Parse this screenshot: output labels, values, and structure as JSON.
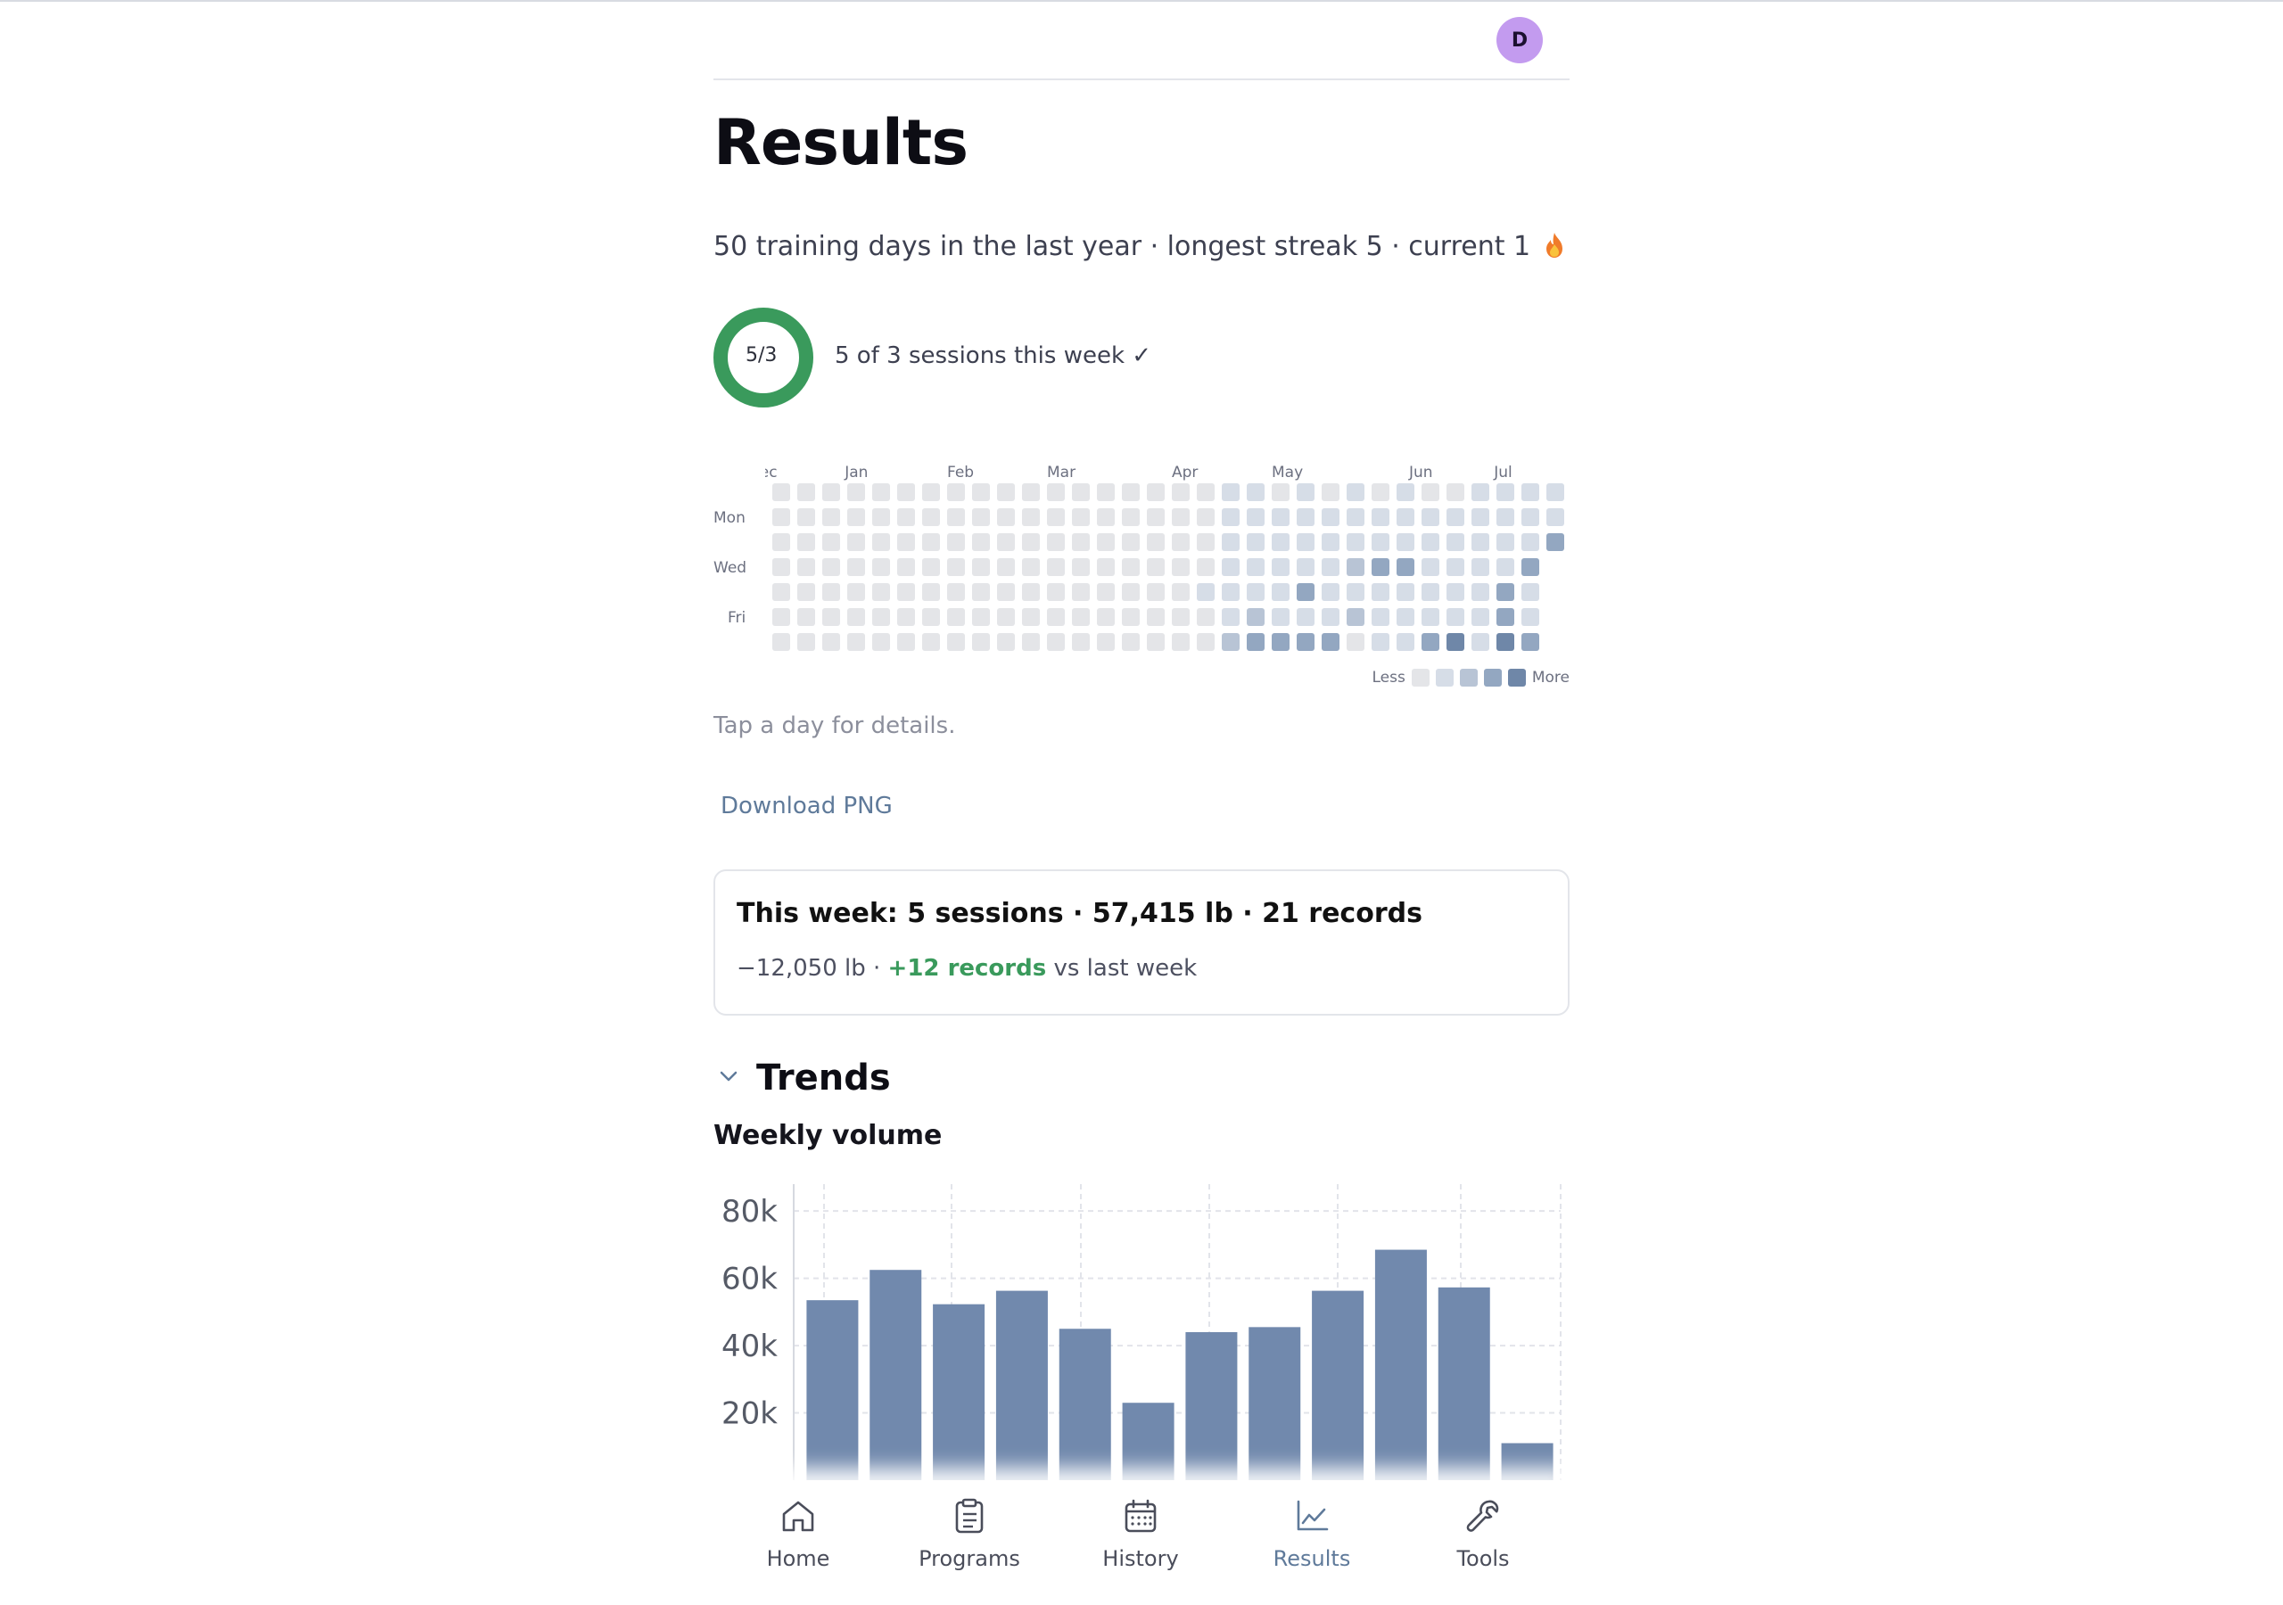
{
  "header": {
    "avatar_initial": "D"
  },
  "page": {
    "title": "Results",
    "summary": "50 training days in the last year · longest streak 5 · current 1"
  },
  "weekly_goal": {
    "ring_label": "5/3",
    "caption": "5 of 3 sessions this week ✓",
    "completed": 5,
    "target": 3,
    "color": "#3a9a5c"
  },
  "heatmap": {
    "months": [
      "Dec",
      "Jan",
      "Feb",
      "Mar",
      "Apr",
      "May",
      "Jun",
      "Jul"
    ],
    "day_labels": [
      "Mon",
      "Wed",
      "Fri"
    ],
    "legend_less": "Less",
    "legend_more": "More",
    "levels": [
      "#e4e5e8",
      "#d6dde7",
      "#b8c4d5",
      "#93a7c1",
      "#6f87a8"
    ],
    "active_weeks": [
      [
        0,
        0,
        0,
        0,
        1,
        0,
        0
      ],
      [
        1,
        1,
        1,
        1,
        1,
        1,
        2
      ],
      [
        1,
        1,
        1,
        1,
        1,
        2,
        3
      ],
      [
        0,
        1,
        1,
        1,
        1,
        1,
        3
      ],
      [
        1,
        1,
        1,
        1,
        3,
        1,
        3
      ],
      [
        0,
        1,
        1,
        1,
        1,
        1,
        3
      ],
      [
        1,
        1,
        1,
        2,
        1,
        2,
        0
      ],
      [
        0,
        1,
        1,
        3,
        1,
        1,
        1
      ],
      [
        1,
        1,
        1,
        3,
        1,
        1,
        1
      ],
      [
        0,
        1,
        1,
        1,
        1,
        1,
        3
      ],
      [
        0,
        1,
        1,
        1,
        1,
        1,
        4
      ],
      [
        1,
        1,
        1,
        1,
        1,
        1,
        1
      ],
      [
        1,
        1,
        1,
        1,
        3,
        3,
        4
      ],
      [
        1,
        1,
        1,
        3,
        1,
        1,
        3
      ],
      [
        1,
        1,
        3,
        0,
        0,
        0,
        0
      ]
    ]
  },
  "hint": "Tap a day for details.",
  "download_label": "Download PNG",
  "week_card": {
    "headline": "This week: 5 sessions · 57,415 lb · 21 records",
    "delta_volume": "−12,050 lb ·",
    "delta_records": "+12 records",
    "delta_suffix": "vs last week"
  },
  "trends": {
    "title": "Trends",
    "chart_title": "Weekly volume"
  },
  "chart_data": {
    "type": "bar",
    "title": "Weekly volume",
    "xlabel": "",
    "ylabel": "",
    "ylim": [
      0,
      88000
    ],
    "yticks": [
      20000,
      40000,
      60000,
      80000
    ],
    "ytick_labels": [
      "20k",
      "40k",
      "60k",
      "80k"
    ],
    "values": [
      53500,
      62500,
      52300,
      56300,
      45000,
      23000,
      44000,
      45500,
      56300,
      68500,
      57300,
      11000
    ],
    "bar_color": "#7189ad",
    "grid": true
  },
  "nav": {
    "items": [
      {
        "label": "Home",
        "icon": "home-icon"
      },
      {
        "label": "Programs",
        "icon": "clipboard-icon"
      },
      {
        "label": "History",
        "icon": "calendar-icon"
      },
      {
        "label": "Results",
        "icon": "chart-line-icon"
      },
      {
        "label": "Tools",
        "icon": "wrench-icon"
      }
    ],
    "active": "Results",
    "active_color": "#5f7a9a"
  }
}
